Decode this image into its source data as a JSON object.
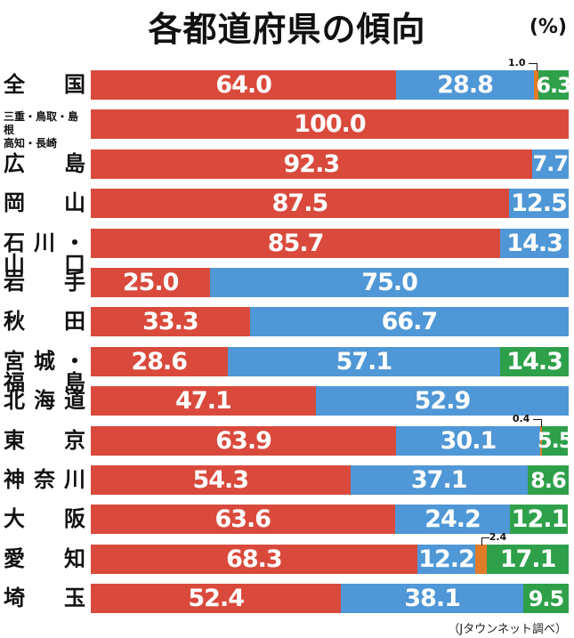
{
  "chart_data": {
    "type": "bar",
    "orientation": "horizontal",
    "stacked": true,
    "title": "各都道府県の傾向",
    "unit": "(%)",
    "source": "（Jタウンネット調べ）",
    "colors": [
      "#d94a3c",
      "#4f97d6",
      "#e07b28",
      "#2ea04a"
    ],
    "xlim": [
      0,
      100
    ],
    "categories": [
      "全国",
      "三重・鳥取・島根|高知・長崎",
      "広島",
      "岡山",
      "石川・山口",
      "岩手",
      "秋田",
      "宮城・福島",
      "北海道",
      "東京",
      "神奈川",
      "大阪",
      "愛知",
      "埼玉"
    ],
    "rows": [
      [
        64.0,
        28.8,
        1.0,
        6.3
      ],
      [
        100.0,
        0,
        0,
        0
      ],
      [
        92.3,
        7.7,
        0,
        0
      ],
      [
        87.5,
        12.5,
        0,
        0
      ],
      [
        85.7,
        14.3,
        0,
        0
      ],
      [
        25.0,
        75.0,
        0,
        0
      ],
      [
        33.3,
        66.7,
        0,
        0
      ],
      [
        28.6,
        57.1,
        0,
        14.3
      ],
      [
        47.1,
        52.9,
        0,
        0
      ],
      [
        63.9,
        30.1,
        0.4,
        5.5
      ],
      [
        54.3,
        37.1,
        0,
        8.6
      ],
      [
        63.6,
        24.2,
        0,
        12.1
      ],
      [
        68.3,
        12.2,
        2.4,
        17.1
      ],
      [
        52.4,
        38.1,
        0,
        9.5
      ]
    ]
  }
}
